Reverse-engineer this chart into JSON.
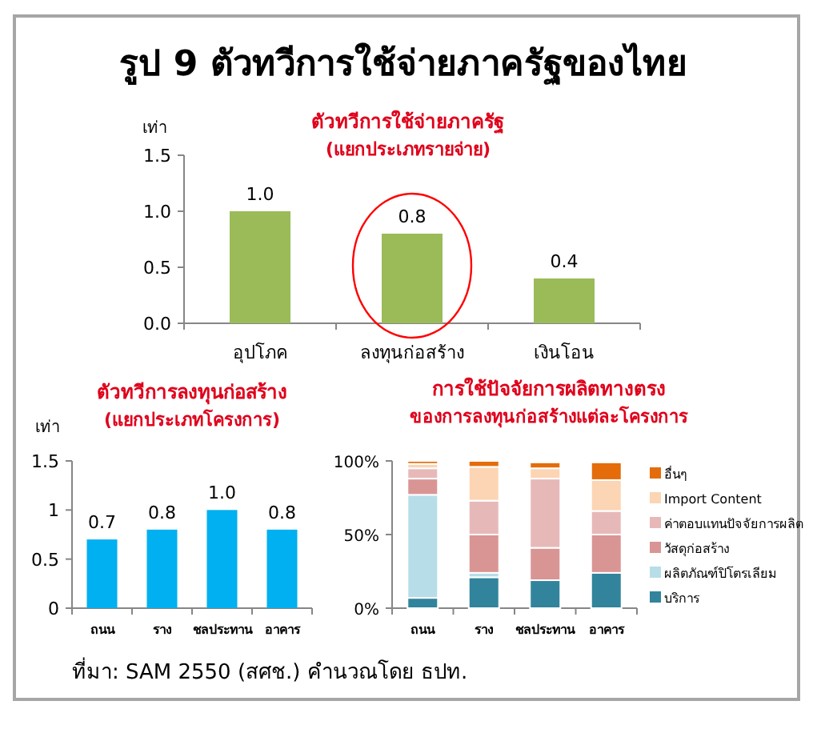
{
  "chart_data": [
    {
      "type": "other",
      "title": "รูป 9 ตัวทวีการใช้จ่ายภาครัฐของไทย",
      "annotations": [
        "ที่มา: SAM 2550 (สศช.) คำนวณโดย ธปท."
      ]
    },
    {
      "type": "bar",
      "title": "ตัวทวีการใช้จ่ายภาครัฐ",
      "subtitle": "(แยกประเภทรายจ่าย)",
      "ylabel": "เท่า",
      "categories": [
        "อุปโภค",
        "ลงทุนก่อสร้าง",
        "เงินโอน"
      ],
      "values": [
        1.0,
        0.8,
        0.4
      ],
      "value_labels": [
        "1.0",
        "0.8",
        "0.4"
      ],
      "colors": [
        "#9bbb59",
        "#9bbb59",
        "#9bbb59"
      ],
      "ylim": [
        0,
        1.5
      ],
      "yticks": [
        {
          "value": 0,
          "label": "0.0"
        },
        {
          "value": 0.5,
          "label": "0.5"
        },
        {
          "value": 1,
          "label": "1.0"
        },
        {
          "value": 1.5,
          "label": "1.5"
        }
      ]
    },
    {
      "type": "bar",
      "title": "ตัวทวีการลงทุนก่อสร้าง",
      "subtitle": "(แยกประเภทโครงการ)",
      "ylabel": "เท่า",
      "categories": [
        "ถนน",
        "ราง",
        "ชลประทาน",
        "อาคาร"
      ],
      "values": [
        0.7,
        0.8,
        1.0,
        0.8
      ],
      "value_labels": [
        "0.7",
        "0.8",
        "1.0",
        "0.8"
      ],
      "colors": [
        "#00b0f0",
        "#00b0f0",
        "#00b0f0",
        "#00b0f0"
      ],
      "ylim": [
        0,
        1.5
      ],
      "yticks": [
        0,
        0.5,
        1,
        1.5
      ]
    },
    {
      "type": "bar",
      "stacked": true,
      "title": "การใช้ปัจจัยการผลิตทางตรง",
      "subtitle": "ของการลงทุนก่อสร้างแต่ละโครงการ",
      "categories": [
        "ถนน",
        "ราง",
        "ชลประทาน",
        "อาคาร"
      ],
      "legend": "right",
      "ylim": [
        0,
        100
      ],
      "yticks": [
        {
          "value": 0,
          "label": "0%"
        },
        {
          "value": 50,
          "label": "50%"
        },
        {
          "value": 100,
          "label": "100%"
        }
      ],
      "series": [
        {
          "name": "บริการ",
          "color": "#31849b",
          "values": [
            7,
            21,
            19,
            24
          ]
        },
        {
          "name": "ผลิตภัณฑ์ปิโตรเลียม",
          "color": "#b7dde8",
          "values": [
            70,
            3,
            null,
            null
          ]
        },
        {
          "name": "วัสดุก่อสร้าง",
          "color": "#d99594",
          "values": [
            11,
            26,
            22,
            26
          ]
        },
        {
          "name": "ค่าตอบแทนปัจจัยการผลิต",
          "color": "#e6b9b8",
          "values": [
            7,
            23,
            47,
            16
          ]
        },
        {
          "name": "Import Content",
          "color": "#fcd5b4",
          "values": [
            3,
            23,
            7,
            21
          ]
        },
        {
          "name": "อื่นๆ",
          "color": "#e46c0a",
          "values": [
            2,
            4,
            4,
            12
          ]
        }
      ]
    }
  ]
}
